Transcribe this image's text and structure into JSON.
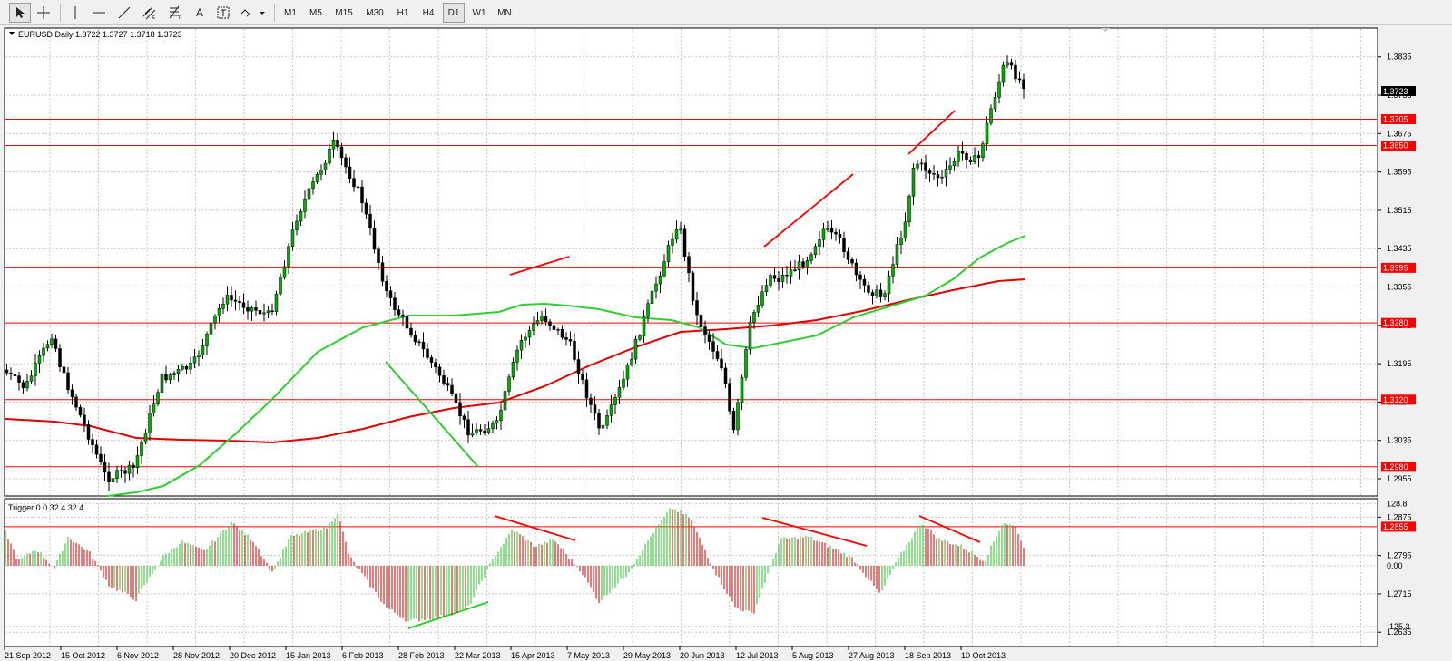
{
  "toolbar": {
    "timeframes": [
      {
        "label": "M1",
        "active": false
      },
      {
        "label": "M5",
        "active": false
      },
      {
        "label": "M15",
        "active": false
      },
      {
        "label": "M30",
        "active": false
      },
      {
        "label": "H1",
        "active": false
      },
      {
        "label": "H4",
        "active": false
      },
      {
        "label": "D1",
        "active": true
      },
      {
        "label": "W1",
        "active": false
      },
      {
        "label": "MN",
        "active": false
      }
    ],
    "tools": [
      "cursor-icon",
      "crosshair-icon",
      "vertical-line-icon",
      "horizontal-line-icon",
      "trendline-icon",
      "equidistant-channel-icon",
      "fibonacci-icon",
      "text-icon",
      "text-label-icon",
      "arrows-icon"
    ],
    "text_tool_label": "A"
  },
  "chart": {
    "symbol_info": "EURUSD,Daily  1.3722 1.3727 1.3718 1.3723",
    "current_price": "1.3723",
    "price_ticks": [
      "1.3835",
      "1.3755",
      "1.3675",
      "1.3595",
      "1.3515",
      "1.3435",
      "1.3355",
      "1.3275",
      "1.3195",
      "1.3115",
      "1.3035",
      "1.2955",
      "1.2875",
      "1.2795",
      "1.2715",
      "1.2635"
    ],
    "levels": [
      "1.3705",
      "1.3650",
      "1.3395",
      "1.3280",
      "1.3120",
      "1.2980",
      "1.2855"
    ],
    "dates": [
      "21 Sep 2012",
      "15 Oct 2012",
      "6 Nov 2012",
      "28 Nov 2012",
      "20 Dec 2012",
      "15 Jan 2013",
      "6 Feb 2013",
      "28 Feb 2013",
      "22 Mar 2013",
      "15 Apr 2013",
      "7 May 2013",
      "29 May 2013",
      "20 Jun 2013",
      "12 Jul 2013",
      "5 Aug 2013",
      "27 Aug 2013",
      "18 Sep 2013",
      "10 Oct 2013"
    ],
    "colors": {
      "up": "#00b000",
      "down": "#000000",
      "fast_ma": "#32cd32",
      "slow_ma": "#e00000",
      "levels": "#ff0000",
      "hist_up": "#44cc44",
      "hist_down": "#dd2222",
      "annotation_red": "#ff0000",
      "annotation_green": "#22cc22"
    }
  },
  "indicator": {
    "label": "Trigger 0.0 32.4 32.4",
    "ticks": [
      "128.8",
      "0.00",
      "-125.3"
    ]
  }
}
